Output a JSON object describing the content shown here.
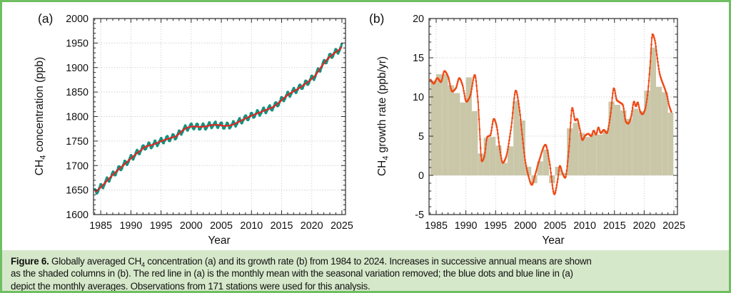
{
  "figure": {
    "border_color": "#6fbf62",
    "caption_bg": "#d6e8ca",
    "caption": {
      "label": "Figure 6.",
      "line1_a": " Globally averaged CH",
      "line1_sub": "4",
      "line1_b": " concentration (a) and its growth rate (b) from 1984 to 2024. Increases in successive annual means are shown",
      "line2": "as the shaded columns in (b). The red line in (a) is the monthly mean with the seasonal variation removed; the blue dots and blue line in (a)",
      "line3": "depict the monthly averages. Observations from 171 stations were used for this analysis."
    }
  },
  "chart_data": [
    {
      "id": "a",
      "type": "line",
      "panel_label": "(a)",
      "xlabel": "Year",
      "ylabel_prefix": "CH",
      "ylabel_sub": "4",
      "ylabel_suffix": " concentration (ppb)",
      "xlim": [
        1983.8,
        2025.6
      ],
      "ylim": [
        1600,
        2000
      ],
      "xticks": [
        1985,
        1990,
        1995,
        2000,
        2005,
        2010,
        2015,
        2020,
        2025
      ],
      "yticks": [
        1600,
        1650,
        1700,
        1750,
        1800,
        1850,
        1900,
        1950,
        2000
      ],
      "grid": "dotted",
      "legend_note": "red line = deseasonalized monthly mean; teal dots/line = monthly averages",
      "colors": {
        "trend": "#e02823",
        "monthly": "#16907f",
        "grid": "#c8c8c8",
        "frame": "#2a2a2a"
      },
      "trend_points": [
        [
          1984.0,
          1646
        ],
        [
          1984.5,
          1650
        ],
        [
          1985.5,
          1662
        ],
        [
          1986.5,
          1675
        ],
        [
          1987.5,
          1687
        ],
        [
          1988.5,
          1698
        ],
        [
          1989.5,
          1709
        ],
        [
          1990.5,
          1720
        ],
        [
          1991.5,
          1730
        ],
        [
          1992.5,
          1739
        ],
        [
          1993.5,
          1742
        ],
        [
          1994.5,
          1747
        ],
        [
          1995.5,
          1752
        ],
        [
          1996.5,
          1756
        ],
        [
          1997.5,
          1760
        ],
        [
          1998.5,
          1771
        ],
        [
          1999.5,
          1778
        ],
        [
          2000.5,
          1780
        ],
        [
          2001.5,
          1779
        ],
        [
          2002.5,
          1780
        ],
        [
          2003.5,
          1783
        ],
        [
          2004.5,
          1783
        ],
        [
          2005.5,
          1781
        ],
        [
          2006.5,
          1782
        ],
        [
          2007.5,
          1787
        ],
        [
          2008.5,
          1793
        ],
        [
          2009.5,
          1799
        ],
        [
          2010.5,
          1804
        ],
        [
          2011.5,
          1809
        ],
        [
          2012.5,
          1814
        ],
        [
          2013.5,
          1819
        ],
        [
          2014.5,
          1828
        ],
        [
          2015.5,
          1839
        ],
        [
          2016.5,
          1848
        ],
        [
          2017.5,
          1855
        ],
        [
          2018.5,
          1863
        ],
        [
          2019.5,
          1872
        ],
        [
          2020.5,
          1883
        ],
        [
          2021.5,
          1900
        ],
        [
          2022.5,
          1916
        ],
        [
          2023.5,
          1927
        ],
        [
          2024.5,
          1936
        ],
        [
          2025.0,
          1942
        ]
      ],
      "monthly_range": [
        1984.04,
        2024.96
      ],
      "seasonal": {
        "amplitude": 5.5,
        "phase": 0.95,
        "semiannual": 1.2
      }
    },
    {
      "id": "b",
      "type": "line+bar",
      "panel_label": "(b)",
      "xlabel": "Year",
      "ylabel_prefix": "CH",
      "ylabel_sub": "4",
      "ylabel_suffix": " growth rate (ppb/yr)",
      "xlim": [
        1983.8,
        2025.6
      ],
      "ylim": [
        -5,
        20
      ],
      "xticks": [
        1985,
        1990,
        1995,
        2000,
        2005,
        2010,
        2015,
        2020,
        2025
      ],
      "yticks": [
        -5,
        0,
        5,
        10,
        15,
        20
      ],
      "grid": "dotted",
      "legend_note": "shaded columns = increases in successive annual means; red dotted line = instantaneous growth rate",
      "colors": {
        "curve": "#ee4a17",
        "bars": "#cac7a9",
        "grid": "#c8c8c8",
        "frame": "#2a2a2a"
      },
      "bar_years": [
        1984,
        1985,
        1986,
        1987,
        1988,
        1989,
        1990,
        1991,
        1992,
        1993,
        1994,
        1995,
        1996,
        1997,
        1998,
        1999,
        2000,
        2001,
        2002,
        2003,
        2004,
        2005,
        2006,
        2007,
        2008,
        2009,
        2010,
        2011,
        2012,
        2013,
        2014,
        2015,
        2016,
        2017,
        2018,
        2019,
        2020,
        2021,
        2022,
        2023,
        2024
      ],
      "bar_values": [
        12.1,
        12.9,
        12.9,
        11.5,
        10.5,
        9.3,
        12.5,
        8.2,
        2.8,
        4.8,
        4.9,
        3.8,
        1.6,
        3.7,
        9.5,
        7.0,
        1.1,
        -1.0,
        1.8,
        3.3,
        -1.0,
        1.1,
        0.3,
        6.0,
        6.7,
        5.4,
        4.9,
        5.3,
        5.2,
        5.7,
        9.4,
        9.0,
        8.3,
        7.2,
        8.5,
        8.2,
        10.8,
        16.3,
        11.3,
        10.6,
        8.0
      ],
      "growth_curve": [
        [
          1984.05,
          12.2
        ],
        [
          1984.6,
          11.7
        ],
        [
          1985.2,
          12.4
        ],
        [
          1985.8,
          11.9
        ],
        [
          1986.4,
          13.3
        ],
        [
          1987.0,
          12.6
        ],
        [
          1987.7,
          10.7
        ],
        [
          1988.3,
          11.1
        ],
        [
          1988.9,
          12.4
        ],
        [
          1989.4,
          11.6
        ],
        [
          1990.1,
          9.4
        ],
        [
          1990.7,
          10.1
        ],
        [
          1991.5,
          12.8
        ],
        [
          1992.0,
          9.8
        ],
        [
          1992.7,
          1.8
        ],
        [
          1993.1,
          2.4
        ],
        [
          1993.6,
          4.9
        ],
        [
          1994.1,
          5.1
        ],
        [
          1994.7,
          7.2
        ],
        [
          1995.2,
          6.2
        ],
        [
          1995.7,
          3.4
        ],
        [
          1996.2,
          1.6
        ],
        [
          1996.7,
          2.2
        ],
        [
          1997.6,
          6.0
        ],
        [
          1998.4,
          10.8
        ],
        [
          1999.0,
          8.5
        ],
        [
          1999.5,
          5.0
        ],
        [
          2000.0,
          1.8
        ],
        [
          2000.5,
          0.0
        ],
        [
          2001.1,
          -1.2
        ],
        [
          2001.7,
          0.2
        ],
        [
          2002.3,
          1.8
        ],
        [
          2003.4,
          3.9
        ],
        [
          2004.0,
          2.0
        ],
        [
          2004.9,
          -2.4
        ],
        [
          2005.4,
          -0.8
        ],
        [
          2005.8,
          1.2
        ],
        [
          2006.3,
          0.2
        ],
        [
          2006.7,
          -0.3
        ],
        [
          2007.3,
          3.0
        ],
        [
          2007.9,
          8.6
        ],
        [
          2008.4,
          7.0
        ],
        [
          2008.7,
          7.2
        ],
        [
          2009.2,
          5.8
        ],
        [
          2009.6,
          4.5
        ],
        [
          2010.1,
          5.1
        ],
        [
          2010.6,
          5.3
        ],
        [
          2011.1,
          5.0
        ],
        [
          2011.5,
          5.7
        ],
        [
          2011.9,
          5.2
        ],
        [
          2012.3,
          6.1
        ],
        [
          2012.7,
          5.4
        ],
        [
          2013.2,
          5.8
        ],
        [
          2013.7,
          5.4
        ],
        [
          2014.3,
          7.5
        ],
        [
          2014.9,
          11.1
        ],
        [
          2015.4,
          9.6
        ],
        [
          2015.9,
          9.3
        ],
        [
          2016.4,
          9.0
        ],
        [
          2016.9,
          6.9
        ],
        [
          2017.3,
          6.6
        ],
        [
          2017.8,
          7.5
        ],
        [
          2018.3,
          9.4
        ],
        [
          2018.6,
          8.8
        ],
        [
          2018.9,
          9.3
        ],
        [
          2019.3,
          8.2
        ],
        [
          2019.7,
          7.8
        ],
        [
          2020.1,
          8.3
        ],
        [
          2020.6,
          10.5
        ],
        [
          2021.0,
          14.0
        ],
        [
          2021.4,
          18.0
        ],
        [
          2021.8,
          17.2
        ],
        [
          2022.2,
          15.0
        ],
        [
          2022.6,
          13.0
        ],
        [
          2023.0,
          12.0
        ],
        [
          2023.4,
          11.2
        ],
        [
          2023.8,
          10.3
        ],
        [
          2024.2,
          8.9
        ],
        [
          2024.6,
          8.0
        ]
      ],
      "curve_range": [
        1984.05,
        2024.6
      ]
    }
  ]
}
